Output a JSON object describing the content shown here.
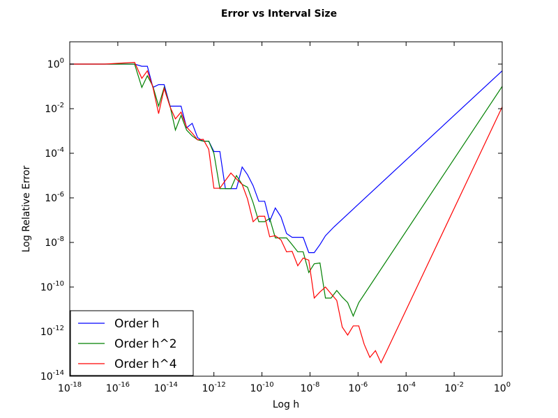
{
  "chart_data": {
    "type": "line",
    "title": "Error vs Interval Size",
    "xlabel": "Log h",
    "ylabel": "Log Relative Error",
    "x_scale": "log",
    "y_scale": "log",
    "xlim": [
      1e-18,
      1
    ],
    "ylim": [
      1e-14,
      10
    ],
    "grid": false,
    "legend_position": "lower-left",
    "x_ticks": [
      {
        "base": "10",
        "exp": "-18"
      },
      {
        "base": "10",
        "exp": "-16"
      },
      {
        "base": "10",
        "exp": "-14"
      },
      {
        "base": "10",
        "exp": "-12"
      },
      {
        "base": "10",
        "exp": "-10"
      },
      {
        "base": "10",
        "exp": "-8"
      },
      {
        "base": "10",
        "exp": "-6"
      },
      {
        "base": "10",
        "exp": "-4"
      },
      {
        "base": "10",
        "exp": "-2"
      },
      {
        "base": "10",
        "exp": "0"
      }
    ],
    "y_ticks": [
      {
        "base": "10",
        "exp": "-14"
      },
      {
        "base": "10",
        "exp": "-12"
      },
      {
        "base": "10",
        "exp": "-10"
      },
      {
        "base": "10",
        "exp": "-8"
      },
      {
        "base": "10",
        "exp": "-6"
      },
      {
        "base": "10",
        "exp": "-4"
      },
      {
        "base": "10",
        "exp": "-2"
      },
      {
        "base": "10",
        "exp": "0"
      }
    ],
    "series": [
      {
        "name": "Order h",
        "color": "#0000ff",
        "points": [
          [
            1e-18,
            1.0
          ],
          [
            2.9e-17,
            1.0
          ],
          [
            5e-16,
            1.0
          ],
          [
            1e-15,
            0.8
          ],
          [
            1.7e-15,
            0.8
          ],
          [
            2.9e-15,
            0.09
          ],
          [
            5e-15,
            0.12
          ],
          [
            8.5e-15,
            0.12
          ],
          [
            1.5e-14,
            0.013
          ],
          [
            2.5e-14,
            0.013
          ],
          [
            4.3e-14,
            0.013
          ],
          [
            7.3e-14,
            0.0014
          ],
          [
            1.25e-13,
            0.0022
          ],
          [
            2.1e-13,
            0.0005
          ],
          [
            3.6e-13,
            0.00035
          ],
          [
            6.1e-13,
            0.00035
          ],
          [
            1e-12,
            0.00012
          ],
          [
            1.77e-12,
            0.00012
          ],
          [
            3e-12,
            2.6e-06
          ],
          [
            5.1e-12,
            2.6e-06
          ],
          [
            8.7e-12,
            2.6e-06
          ],
          [
            1.5e-11,
            2.4e-05
          ],
          [
            2.5e-11,
            1.1e-05
          ],
          [
            4.3e-11,
            3.5e-06
          ],
          [
            7.4e-11,
            7e-07
          ],
          [
            1.3e-10,
            7e-07
          ],
          [
            2.1e-10,
            9e-08
          ],
          [
            3.6e-10,
            3.5e-07
          ],
          [
            6.2e-10,
            1.4e-07
          ],
          [
            1.06e-09,
            2.5e-08
          ],
          [
            1.8e-09,
            1.7e-08
          ],
          [
            3.1e-09,
            1.7e-08
          ],
          [
            5.2e-09,
            1.7e-08
          ],
          [
            8.9e-09,
            3.5e-09
          ],
          [
            1.5e-08,
            3.5e-09
          ],
          [
            2.6e-08,
            8e-09
          ],
          [
            4.4e-08,
            2e-08
          ],
          [
            1e-07,
            5e-08
          ],
          [
            1,
            0.5
          ]
        ]
      },
      {
        "name": "Order h^2",
        "color": "#008000",
        "points": [
          [
            1e-18,
            1.0
          ],
          [
            2.9e-17,
            1.0
          ],
          [
            5e-16,
            1.0
          ],
          [
            1e-15,
            0.09
          ],
          [
            1.7e-15,
            0.3
          ],
          [
            2.9e-15,
            0.1
          ],
          [
            5e-15,
            0.013
          ],
          [
            8.5e-15,
            0.09
          ],
          [
            1.5e-14,
            0.013
          ],
          [
            2.5e-14,
            0.0011
          ],
          [
            4.3e-14,
            0.005
          ],
          [
            7.3e-14,
            0.0011
          ],
          [
            1.25e-13,
            0.0006
          ],
          [
            2.1e-13,
            0.0004
          ],
          [
            3.6e-13,
            0.00035
          ],
          [
            6.1e-13,
            0.00035
          ],
          [
            1e-12,
            0.0001
          ],
          [
            1.77e-12,
            2.6e-06
          ],
          [
            3e-12,
            2.6e-06
          ],
          [
            5.1e-12,
            2.6e-06
          ],
          [
            8.7e-12,
            1e-05
          ],
          [
            1.5e-11,
            4e-06
          ],
          [
            2.5e-11,
            3e-06
          ],
          [
            4.3e-11,
            6e-07
          ],
          [
            7.4e-11,
            8.5e-08
          ],
          [
            1.3e-10,
            8.5e-08
          ],
          [
            2.1e-10,
            1.2e-07
          ],
          [
            3.6e-10,
            1.6e-08
          ],
          [
            6.2e-10,
            1.6e-08
          ],
          [
            1.06e-09,
            1.6e-08
          ],
          [
            1.8e-09,
            8e-09
          ],
          [
            3.1e-09,
            3.8e-09
          ],
          [
            5.2e-09,
            3.8e-09
          ],
          [
            8.9e-09,
            4.5e-10
          ],
          [
            1.5e-08,
            1.1e-09
          ],
          [
            2.6e-08,
            1.2e-09
          ],
          [
            4.4e-08,
            3.2e-11
          ],
          [
            7.5e-08,
            3.2e-11
          ],
          [
            1.3e-07,
            7e-11
          ],
          [
            2.2e-07,
            3.5e-11
          ],
          [
            3.7e-07,
            2e-11
          ],
          [
            6.3e-07,
            5e-12
          ],
          [
            1.07e-06,
            2e-11
          ],
          [
            1,
            0.1
          ]
        ]
      },
      {
        "name": "Order h^4",
        "color": "#ff0000",
        "points": [
          [
            1e-18,
            1.0
          ],
          [
            2.9e-17,
            1.0
          ],
          [
            5e-16,
            1.2
          ],
          [
            1e-15,
            0.23
          ],
          [
            1.7e-15,
            0.5
          ],
          [
            2.9e-15,
            0.09
          ],
          [
            5e-15,
            0.006
          ],
          [
            8.5e-15,
            0.08
          ],
          [
            1.5e-14,
            0.012
          ],
          [
            2.5e-14,
            0.0035
          ],
          [
            4.3e-14,
            0.007
          ],
          [
            7.3e-14,
            0.0015
          ],
          [
            1.25e-13,
            0.0008
          ],
          [
            2.1e-13,
            0.0004
          ],
          [
            3.6e-13,
            0.00042
          ],
          [
            6.1e-13,
            0.00015
          ],
          [
            1e-12,
            2.7e-06
          ],
          [
            1.77e-12,
            2.7e-06
          ],
          [
            3e-12,
            6e-06
          ],
          [
            5.1e-12,
            1.3e-05
          ],
          [
            8.7e-12,
            7e-06
          ],
          [
            1.5e-11,
            4e-06
          ],
          [
            2.5e-11,
            9e-07
          ],
          [
            4.3e-11,
            8.5e-08
          ],
          [
            7.4e-11,
            1.5e-07
          ],
          [
            1.3e-10,
            1.5e-07
          ],
          [
            2.1e-10,
            1.8e-08
          ],
          [
            3.6e-10,
            2e-08
          ],
          [
            6.2e-10,
            1.3e-08
          ],
          [
            1.06e-09,
            3.8e-09
          ],
          [
            1.8e-09,
            4e-09
          ],
          [
            3.1e-09,
            9e-10
          ],
          [
            5.2e-09,
            2e-09
          ],
          [
            8.9e-09,
            1.6e-09
          ],
          [
            1.5e-08,
            3.2e-11
          ],
          [
            2.6e-08,
            6e-11
          ],
          [
            4.4e-08,
            1e-10
          ],
          [
            7.5e-08,
            5e-11
          ],
          [
            1.3e-07,
            2.5e-11
          ],
          [
            2.2e-07,
            1.6e-12
          ],
          [
            3.7e-07,
            7e-13
          ],
          [
            6.3e-07,
            1.8e-12
          ],
          [
            1.07e-06,
            1.8e-12
          ],
          [
            1.8e-06,
            2.7e-13
          ],
          [
            3.1e-06,
            7e-14
          ],
          [
            5.3e-06,
            1.4e-13
          ],
          [
            9e-06,
            4e-14
          ],
          [
            1.53e-05,
            1.3e-13
          ],
          [
            1,
            0.012
          ]
        ]
      }
    ]
  }
}
